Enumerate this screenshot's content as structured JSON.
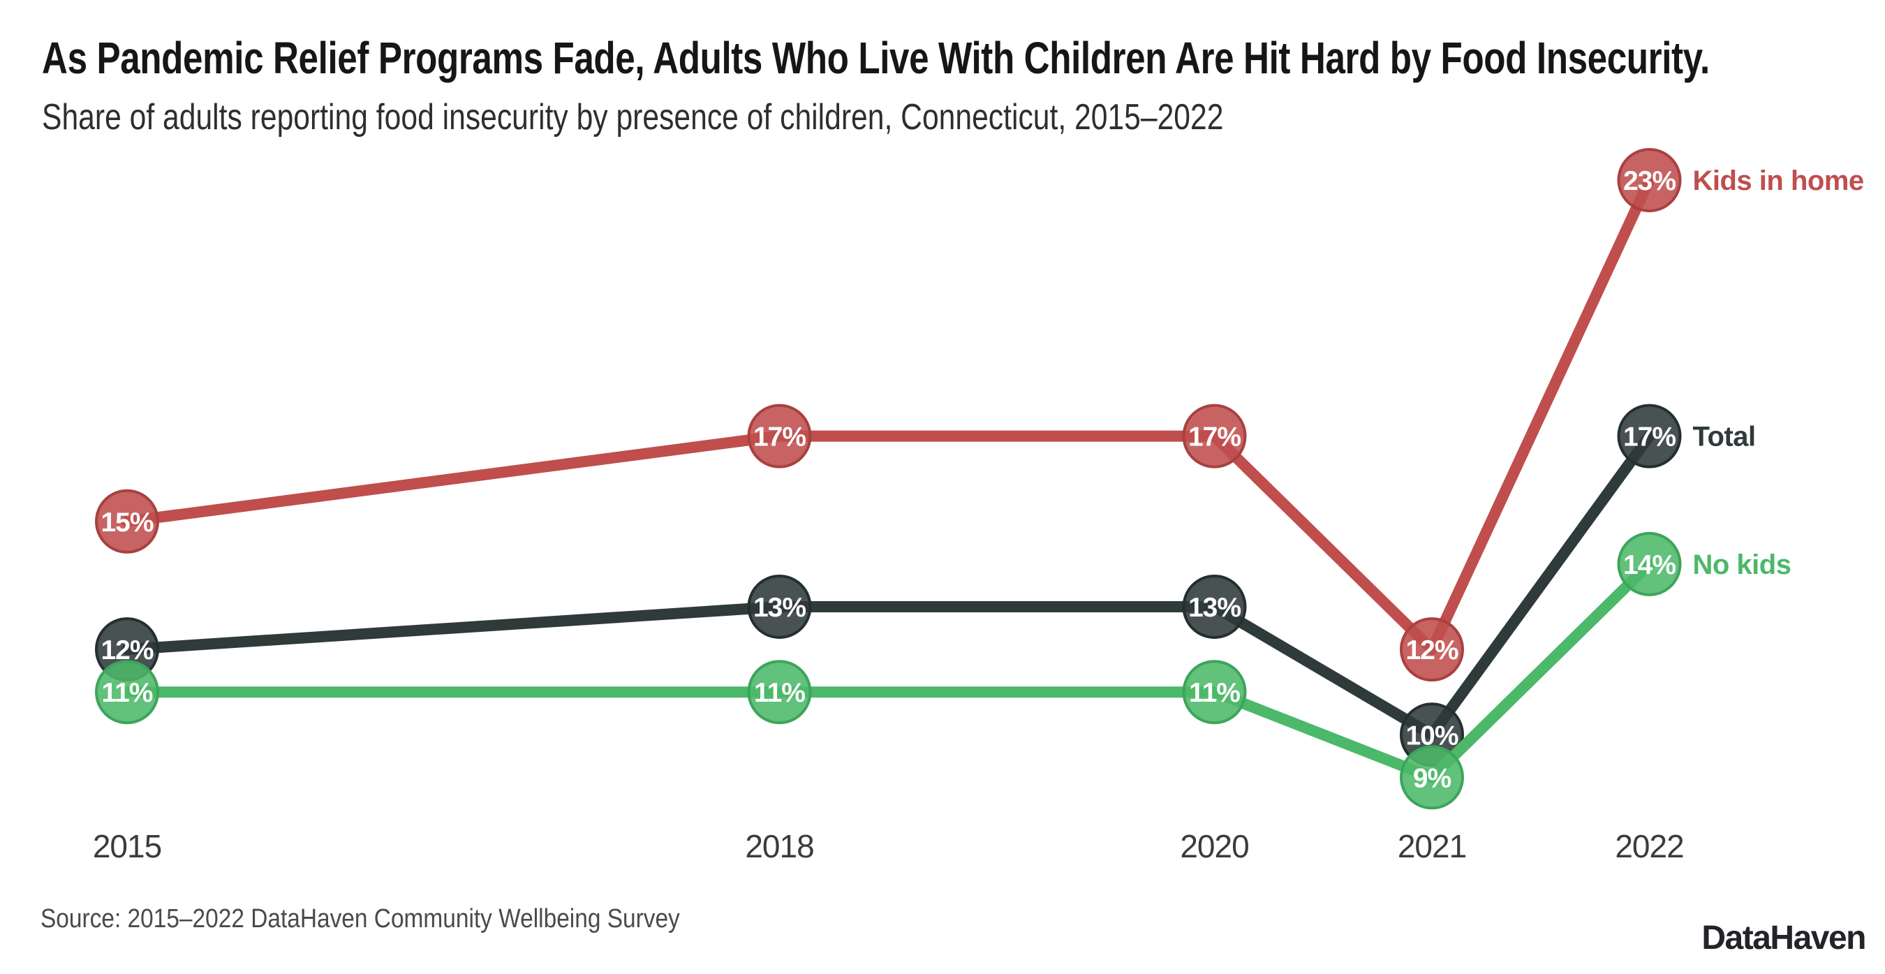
{
  "header": {
    "title": "As Pandemic Relief Programs Fade, Adults Who Live With Children Are Hit Hard by Food Insecurity.",
    "subtitle": "Share of adults reporting food insecurity by presence of children, Connecticut, 2015–2022"
  },
  "footer": {
    "source": "Source: 2015–2022 DataHaven Community Wellbeing Survey",
    "logo": "DataHaven"
  },
  "chart_data": {
    "type": "line",
    "title": "As Pandemic Relief Programs Fade, Adults Who Live With Children Are Hit Hard by Food Insecurity.",
    "subtitle": "Share of adults reporting food insecurity by presence of children, Connecticut, 2015–2022",
    "x": [
      2015,
      2018,
      2020,
      2021,
      2022
    ],
    "x_tick_labels": [
      "2015",
      "2018",
      "2020",
      "2021",
      "2022"
    ],
    "unit": "%",
    "ylim": [
      8,
      24
    ],
    "grid": false,
    "legend_position": "right-of-last-point",
    "value_label_format": "{v}%",
    "series": [
      {
        "name": "Kids in home",
        "values": [
          15,
          17,
          17,
          12,
          23
        ],
        "color": "#bf4e4d",
        "ring_color": "#a84140"
      },
      {
        "name": "Total",
        "values": [
          12,
          13,
          13,
          10,
          17
        ],
        "color": "#2f3a3a",
        "ring_color": "#243030"
      },
      {
        "name": "No kids",
        "values": [
          11,
          11,
          11,
          9,
          14
        ],
        "color": "#4cb869",
        "ring_color": "#3da55b"
      }
    ]
  }
}
